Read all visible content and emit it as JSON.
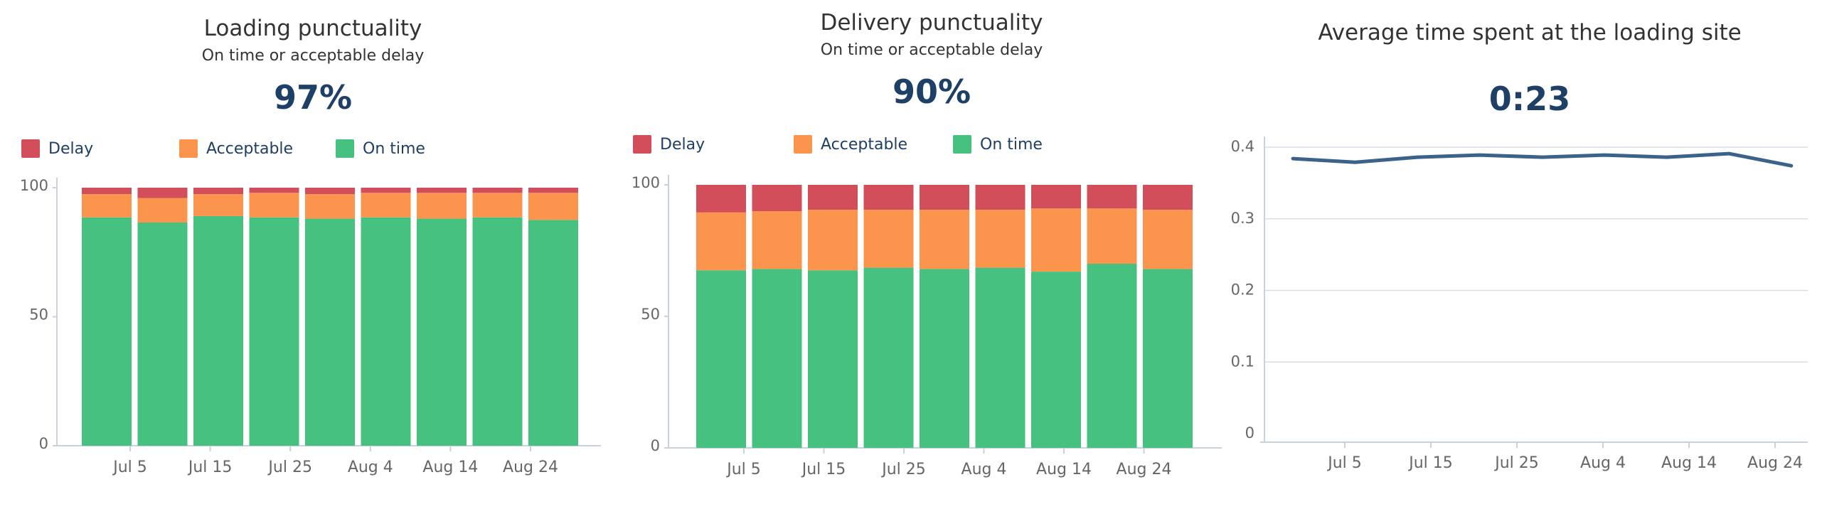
{
  "colors": {
    "on_time": "#47c17f",
    "acceptable": "#fb954e",
    "delay": "#d24e5a",
    "line": "#3b6289",
    "kpi": "#1e3f66",
    "axis": "#c9d2dc",
    "tick_text": "#666666"
  },
  "legend": {
    "delay": "Delay",
    "acceptable": "Acceptable",
    "on_time": "On time"
  },
  "chart_data": [
    {
      "type": "bar",
      "stacked": true,
      "title": "Loading punctuality",
      "subtitle": "On time or acceptable delay",
      "kpi": "97%",
      "ylim": [
        0,
        100
      ],
      "yticks": [
        "0",
        "50",
        "100"
      ],
      "xticks": [
        "Jul 5",
        "Jul 15",
        "Jul 25",
        "Aug 4",
        "Aug 14",
        "Aug 24"
      ],
      "series": [
        {
          "name": "On time",
          "values": [
            88.5,
            86.5,
            89,
            88.5,
            88,
            88.5,
            88,
            88.5,
            87.5
          ]
        },
        {
          "name": "Acceptable",
          "values": [
            9,
            9.5,
            8.5,
            9.5,
            9.5,
            9.5,
            10,
            9.5,
            10.5
          ]
        },
        {
          "name": "Delay",
          "values": [
            2.5,
            4,
            2.5,
            2,
            2.5,
            2,
            2,
            2,
            2
          ]
        }
      ]
    },
    {
      "type": "bar",
      "stacked": true,
      "title": "Delivery punctuality",
      "subtitle": "On time or acceptable delay",
      "kpi": "90%",
      "ylim": [
        0,
        100
      ],
      "yticks": [
        "0",
        "50",
        "100"
      ],
      "xticks": [
        "Jul 5",
        "Jul 15",
        "Jul 25",
        "Aug 4",
        "Aug 14",
        "Aug 24"
      ],
      "series": [
        {
          "name": "On time",
          "values": [
            67.5,
            68,
            67.5,
            68.5,
            68,
            68.5,
            67,
            70,
            68
          ]
        },
        {
          "name": "Acceptable",
          "values": [
            22,
            22,
            23,
            22,
            22.5,
            22,
            24,
            21,
            22.5
          ]
        },
        {
          "name": "Delay",
          "values": [
            10.5,
            10,
            9.5,
            9.5,
            9.5,
            9.5,
            9,
            9,
            9.5
          ]
        }
      ]
    },
    {
      "type": "line",
      "title": "Average time spent at the loading site",
      "kpi": "0:23",
      "ylim": [
        0,
        0.4
      ],
      "yticks": [
        "0",
        "0.1",
        "0.2",
        "0.3",
        "0.4"
      ],
      "xticks": [
        "Jul 5",
        "Jul 15",
        "Jul 25",
        "Aug 4",
        "Aug 14",
        "Aug 24"
      ],
      "x": [
        "Jun 30",
        "Jul 7",
        "Jul 14",
        "Jul 21",
        "Jul 28",
        "Aug 4",
        "Aug 11",
        "Aug 18",
        "Aug 25"
      ],
      "values": [
        0.384,
        0.379,
        0.386,
        0.389,
        0.386,
        0.389,
        0.386,
        0.391,
        0.374
      ]
    }
  ]
}
